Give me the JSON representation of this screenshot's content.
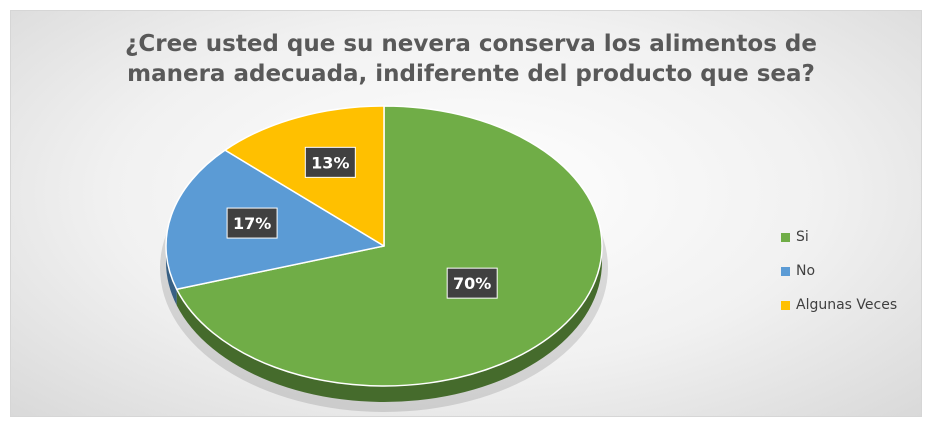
{
  "chart_data": {
    "type": "pie",
    "title_lines": [
      "¿Cree usted que su nevera conserva los alimentos de",
      "manera adecuada, indiferente del producto que sea?"
    ],
    "slices": [
      {
        "label": "Si",
        "value": 70,
        "display": "70%",
        "color": "#70ad47"
      },
      {
        "label": "No",
        "value": 17,
        "display": "17%",
        "color": "#5b9bd5"
      },
      {
        "label": "Algunas Veces",
        "value": 13,
        "display": "13%",
        "color": "#ffc000"
      }
    ],
    "legend_position": "right",
    "style": "3d"
  }
}
